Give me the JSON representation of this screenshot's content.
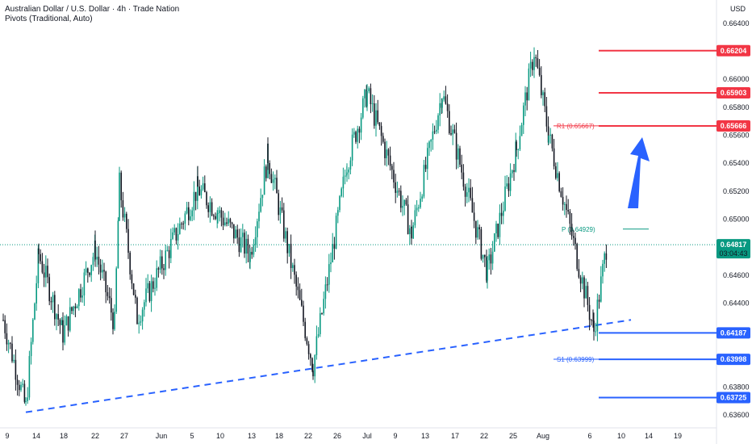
{
  "header": {
    "title": "Australian Dollar / U.S. Dollar · 4h · Trade Nation",
    "subtitle": "Pivots (Traditional, Auto)"
  },
  "chart_data": {
    "type": "candlestick",
    "currency": "USD",
    "ylim": [
      0.6352,
      0.6652
    ],
    "y_ticks": [
      "0.66400",
      "0.66200",
      "0.66000",
      "0.65800",
      "0.65600",
      "0.65400",
      "0.65200",
      "0.65000",
      "0.64600",
      "0.64400",
      "0.64200",
      "0.64000",
      "0.63800",
      "0.63600"
    ],
    "x_ticks": [
      "9",
      "14",
      "18",
      "22",
      "27",
      "Jun",
      "5",
      "10",
      "13",
      "18",
      "22",
      "26",
      "Jul",
      "9",
      "13",
      "17",
      "22",
      "25",
      "Aug",
      "6",
      "10",
      "14",
      "19"
    ],
    "price_line": {
      "value": 0.64817,
      "label": "0.64817",
      "countdown": "03:04:43",
      "color": "#089981"
    },
    "levels": [
      {
        "label": "0.66204",
        "value": 0.66204,
        "color": "#f23645"
      },
      {
        "label": "0.65903",
        "value": 0.65903,
        "color": "#f23645"
      },
      {
        "label": "0.65666",
        "value": 0.65666,
        "color": "#f23645"
      },
      {
        "label": "0.64187",
        "value": 0.64187,
        "color": "#2962ff"
      },
      {
        "label": "0.63998",
        "value": 0.63998,
        "color": "#2962ff"
      },
      {
        "label": "0.63725",
        "value": 0.63725,
        "color": "#2962ff"
      }
    ],
    "pivots": [
      {
        "label": "R1 (0.65667)",
        "value": 0.65667,
        "color": "#f23645"
      },
      {
        "label": "P (0.64929)",
        "value": 0.64929,
        "color": "#089981"
      },
      {
        "label": "S1 (0.63999)",
        "value": 0.63999,
        "color": "#2962ff"
      }
    ],
    "trendline": {
      "from": {
        "x": "14",
        "y": 0.6362
      },
      "to": {
        "x": "Aug",
        "y": 0.6428
      },
      "color": "#2962ff",
      "style": "dashed"
    },
    "annotation_arrow": {
      "direction": "up",
      "color": "#2962ff"
    },
    "price_path": [
      [
        "9",
        0.6428
      ],
      [
        "14",
        0.6365
      ],
      [
        "14",
        0.6475
      ],
      [
        "18",
        0.6418
      ],
      [
        "22",
        0.6478
      ],
      [
        "27",
        0.6425
      ],
      [
        "27",
        0.6525
      ],
      [
        "Jun",
        0.643
      ],
      [
        "5",
        0.6522
      ],
      [
        "10",
        0.6505
      ],
      [
        "13",
        0.6475
      ],
      [
        "18",
        0.6545
      ],
      [
        "22",
        0.6395
      ],
      [
        "26",
        0.654
      ],
      [
        "Jul",
        0.659
      ],
      [
        "9",
        0.649
      ],
      [
        "13",
        0.659
      ],
      [
        "17",
        0.6462
      ],
      [
        "22",
        0.655
      ],
      [
        "25",
        0.662
      ],
      [
        "25",
        0.656
      ],
      [
        "Aug",
        0.642
      ],
      [
        "Aug",
        0.6482
      ]
    ],
    "colors": {
      "up": "#089981",
      "down": "#131722"
    }
  }
}
